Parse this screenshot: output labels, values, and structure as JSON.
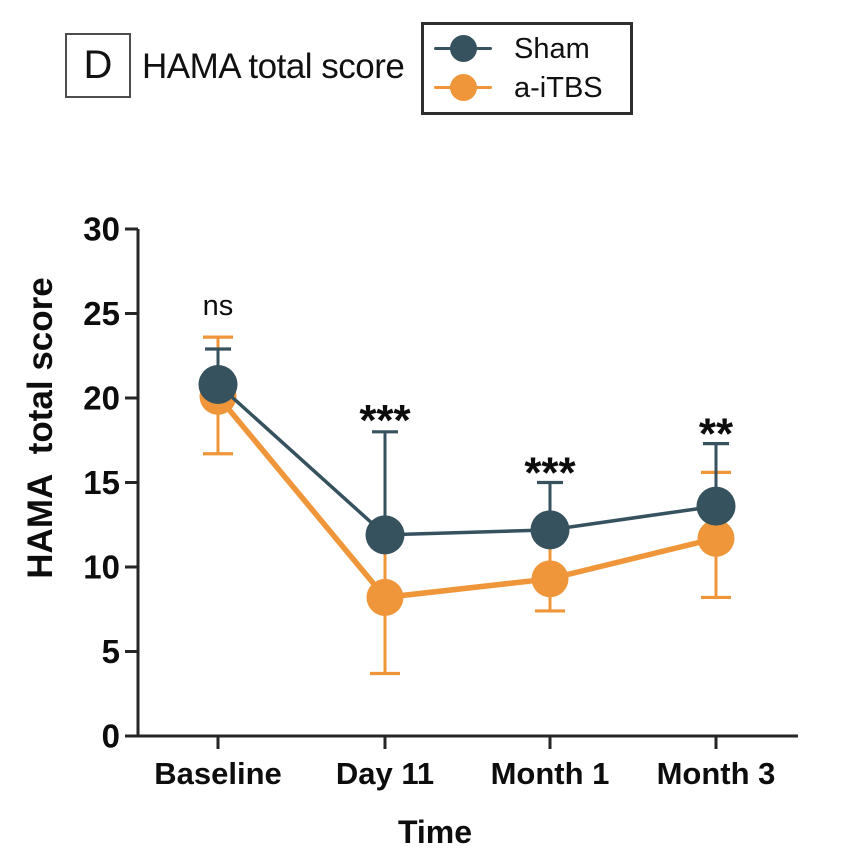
{
  "panel": {
    "label": "D",
    "title": "HAMA total score"
  },
  "legend": {
    "items": [
      {
        "label": "Sham",
        "color": "#35525E"
      },
      {
        "label": "a-iTBS",
        "color": "#F0963A"
      }
    ]
  },
  "chart_data": {
    "type": "line",
    "title": "HAMA total score",
    "xlabel": "Time",
    "ylabel": "HAMA  total score",
    "categories": [
      "Baseline",
      "Day 11",
      "Month 1",
      "Month 3"
    ],
    "ylim": [
      0,
      30
    ],
    "yticks": [
      0,
      5,
      10,
      15,
      20,
      25,
      30
    ],
    "grid": false,
    "legend_position": "top-right",
    "series": [
      {
        "name": "Sham",
        "color": "#35525E",
        "values": [
          20.8,
          11.9,
          12.2,
          13.6
        ],
        "err_upper": [
          22.9,
          18.0,
          15.0,
          17.3
        ],
        "err_lower": [
          null,
          null,
          null,
          null
        ]
      },
      {
        "name": "a-iTBS",
        "color": "#F0963A",
        "values": [
          20.1,
          8.2,
          9.3,
          11.7
        ],
        "err_upper": [
          23.6,
          12.0,
          12.2,
          15.6
        ],
        "err_lower": [
          16.7,
          3.7,
          7.4,
          8.2
        ]
      }
    ],
    "annotations": [
      {
        "category": "Baseline",
        "text": "ns",
        "y": 24.9,
        "style": "plain"
      },
      {
        "category": "Day 11",
        "text": "***",
        "y": 17.8,
        "style": "stars"
      },
      {
        "category": "Month 1",
        "text": "***",
        "y": 14.7,
        "style": "stars"
      },
      {
        "category": "Month 3",
        "text": "**",
        "y": 17.0,
        "style": "stars"
      }
    ]
  }
}
